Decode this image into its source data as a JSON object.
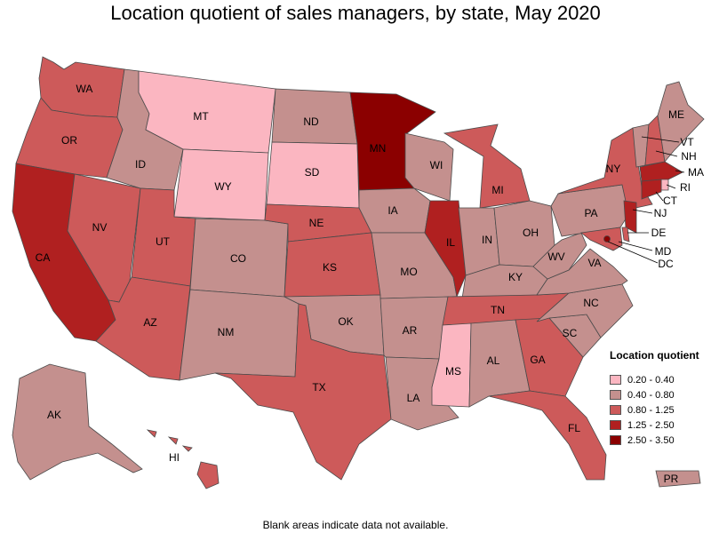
{
  "title": "Location quotient of sales managers, by state, May 2020",
  "footnote": "Blank areas indicate data not available.",
  "legend": {
    "title": "Location quotient",
    "bins": [
      {
        "label": "0.20 - 0.40",
        "color": "#fbb6c1"
      },
      {
        "label": "0.40 - 0.80",
        "color": "#c4908e"
      },
      {
        "label": "0.80 - 1.25",
        "color": "#cd5a5a"
      },
      {
        "label": "1.25 - 2.50",
        "color": "#b02020"
      },
      {
        "label": "2.50 - 3.50",
        "color": "#8b0000"
      }
    ]
  },
  "states": {
    "WA": 2,
    "OR": 2,
    "CA": 3,
    "NV": 2,
    "ID": 1,
    "MT": 0,
    "WY": 0,
    "UT": 2,
    "AZ": 2,
    "CO": 1,
    "NM": 1,
    "ND": 1,
    "SD": 0,
    "NE": 2,
    "KS": 2,
    "OK": 1,
    "TX": 2,
    "MN": 4,
    "IA": 1,
    "MO": 1,
    "AR": 1,
    "LA": 1,
    "WI": 1,
    "IL": 3,
    "MI": 2,
    "IN": 1,
    "OH": 1,
    "KY": 1,
    "TN": 2,
    "MS": 0,
    "AL": 1,
    "GA": 2,
    "FL": 2,
    "SC": 1,
    "NC": 1,
    "VA": 1,
    "WV": 1,
    "PA": 1,
    "NY": 2,
    "VT": 1,
    "NH": 2,
    "ME": 1,
    "MA": 3,
    "RI": 0,
    "CT": 3,
    "NJ": 3,
    "DE": 2,
    "MD": 2,
    "DC": 4,
    "AK": 1,
    "HI": 2,
    "PR": 1
  }
}
